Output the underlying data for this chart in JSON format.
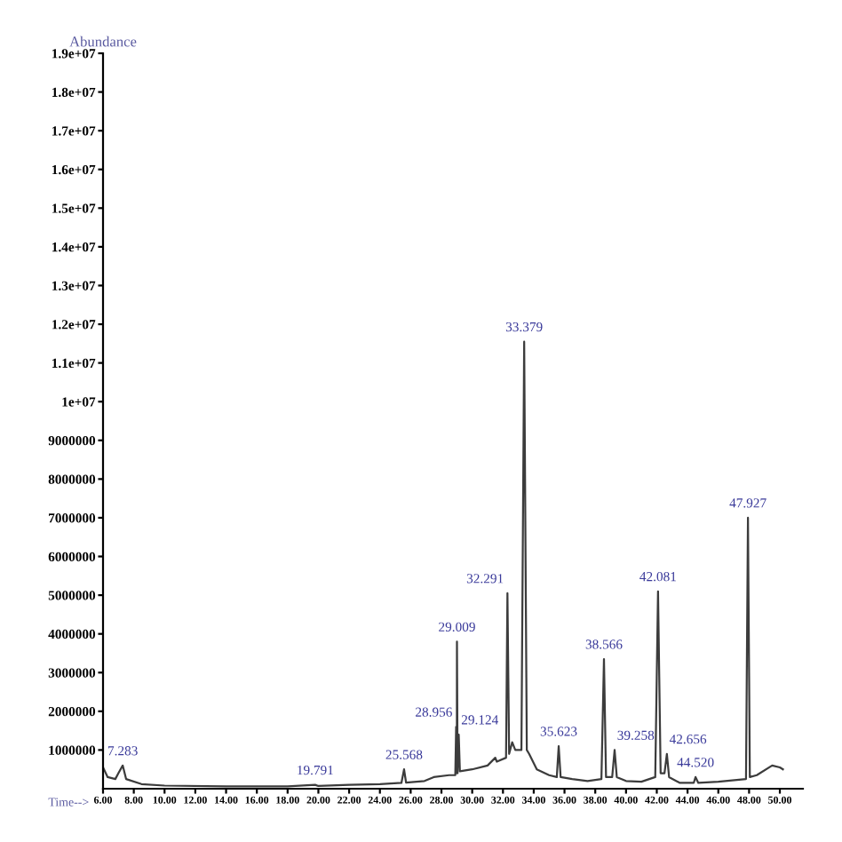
{
  "chart_data": {
    "type": "line",
    "ylabel": "Abundance",
    "xlabel": "Time-->",
    "xlim": [
      6,
      51.5
    ],
    "ylim": [
      0,
      19000000
    ],
    "xticks": [
      {
        "value": 6,
        "label": "6.00"
      },
      {
        "value": 8,
        "label": "8.00"
      },
      {
        "value": 10,
        "label": "10.00"
      },
      {
        "value": 12,
        "label": "12.00"
      },
      {
        "value": 14,
        "label": "14.00"
      },
      {
        "value": 16,
        "label": "16.00"
      },
      {
        "value": 18,
        "label": "18.00"
      },
      {
        "value": 20,
        "label": "20.00"
      },
      {
        "value": 22,
        "label": "22.00"
      },
      {
        "value": 24,
        "label": "24.00"
      },
      {
        "value": 26,
        "label": "26.00"
      },
      {
        "value": 28,
        "label": "28.00"
      },
      {
        "value": 30,
        "label": "30.00"
      },
      {
        "value": 32,
        "label": "32.00"
      },
      {
        "value": 34,
        "label": "34.00"
      },
      {
        "value": 36,
        "label": "36.00"
      },
      {
        "value": 38,
        "label": "38.00"
      },
      {
        "value": 40,
        "label": "40.00"
      },
      {
        "value": 42,
        "label": "42.00"
      },
      {
        "value": 44,
        "label": "44.00"
      },
      {
        "value": 46,
        "label": "46.00"
      },
      {
        "value": 48,
        "label": "48.00"
      },
      {
        "value": 50,
        "label": "50.00"
      }
    ],
    "yticks": [
      1000000,
      2000000,
      3000000,
      4000000,
      5000000,
      6000000,
      7000000,
      8000000,
      9000000,
      {
        "value": 10000000,
        "label": "1e+07"
      },
      {
        "value": 11000000,
        "label": "1.1e+07"
      },
      {
        "value": 12000000,
        "label": "1.2e+07"
      },
      {
        "value": 13000000,
        "label": "1.3e+07"
      },
      {
        "value": 14000000,
        "label": "1.4e+07"
      },
      {
        "value": 15000000,
        "label": "1.5e+07"
      },
      {
        "value": 16000000,
        "label": "1.6e+07"
      },
      {
        "value": 17000000,
        "label": "1.7e+07"
      },
      {
        "value": 18000000,
        "label": "1.8e+07"
      },
      {
        "value": 19000000,
        "label": "1.9e+07"
      }
    ],
    "grid": false,
    "legend": false,
    "marker": "none",
    "line_style": "solid",
    "series": [
      {
        "color": "#3c3c3c",
        "x": [
          6.0,
          6.3,
          6.8,
          7.0,
          7.28,
          7.5,
          8.5,
          10,
          14,
          18,
          19.79,
          20,
          22,
          24,
          25.4,
          25.57,
          25.7,
          26.9,
          27.5,
          28.5,
          28.9,
          28.956,
          29.0,
          29.009,
          29.05,
          29.124,
          29.2,
          30,
          31,
          31.5,
          31.6,
          32.2,
          32.291,
          32.4,
          32.6,
          32.8,
          33.2,
          33.379,
          33.55,
          33.7,
          34.2,
          35,
          35.5,
          35.623,
          35.75,
          36.5,
          37.5,
          38.4,
          38.566,
          38.7,
          39.1,
          39.258,
          39.4,
          40,
          41,
          41.9,
          42.081,
          42.25,
          42.5,
          42.656,
          42.8,
          43.5,
          44.4,
          44.52,
          44.7,
          46,
          47.8,
          47.927,
          48.05,
          48.5,
          49.5,
          50.0,
          50.2
        ],
        "values": [
          550000,
          300000,
          250000,
          400000,
          600000,
          250000,
          120000,
          80000,
          60000,
          60000,
          100000,
          70000,
          100000,
          120000,
          150000,
          500000,
          160000,
          200000,
          300000,
          350000,
          350000,
          1600000,
          400000,
          3800000,
          400000,
          1400000,
          450000,
          500000,
          600000,
          800000,
          700000,
          800000,
          5050000,
          900000,
          1200000,
          1000000,
          1000000,
          11550000,
          1000000,
          900000,
          500000,
          350000,
          300000,
          1100000,
          300000,
          250000,
          200000,
          250000,
          3350000,
          300000,
          300000,
          1000000,
          300000,
          200000,
          180000,
          300000,
          5100000,
          400000,
          400000,
          900000,
          300000,
          150000,
          150000,
          300000,
          150000,
          180000,
          250000,
          7000000,
          300000,
          350000,
          600000,
          550000,
          500000
        ]
      }
    ],
    "annotations": [
      {
        "text": "7.283",
        "x": 7.28,
        "y": 600000
      },
      {
        "text": "19.791",
        "x": 19.79,
        "y": 100000
      },
      {
        "text": "25.568",
        "x": 25.57,
        "y": 500000
      },
      {
        "text": "28.956",
        "x": 28.956,
        "y": 1600000
      },
      {
        "text": "29.124",
        "x": 29.124,
        "y": 1400000
      },
      {
        "text": "29.009",
        "x": 29.009,
        "y": 3800000
      },
      {
        "text": "32.291",
        "x": 32.291,
        "y": 5050000
      },
      {
        "text": "33.379",
        "x": 33.379,
        "y": 11550000
      },
      {
        "text": "35.623",
        "x": 35.623,
        "y": 1100000
      },
      {
        "text": "38.566",
        "x": 38.566,
        "y": 3350000
      },
      {
        "text": "39.258",
        "x": 39.258,
        "y": 1000000
      },
      {
        "text": "42.081",
        "x": 42.081,
        "y": 5100000
      },
      {
        "text": "42.656",
        "x": 42.656,
        "y": 900000
      },
      {
        "text": "44.520",
        "x": 44.52,
        "y": 300000
      },
      {
        "text": "47.927",
        "x": 47.927,
        "y": 7000000
      }
    ]
  }
}
